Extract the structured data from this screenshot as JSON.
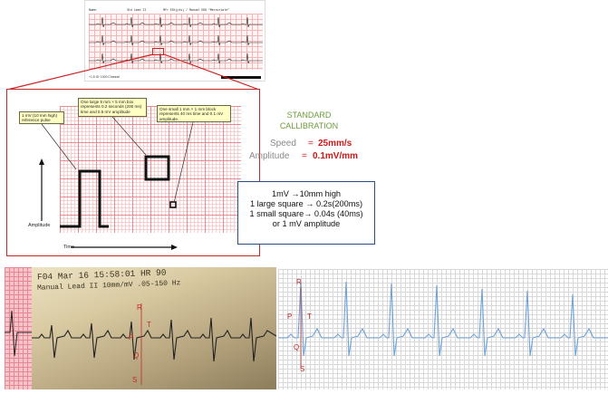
{
  "printout": {
    "header_lines": [
      "Name:                 Std Lead II          Mfr EDt(pts) / Manual EKG \"Mercuriale\"",
      "Patient ID:           HR 74               ECG 12-lead / sinus rhythm",
      "Sex:  M  Age:         PR 156              QRS 88",
      "Location:             QT/QTc 384/412      P-R-T axes",
      "Sex: M                25 mm/s  10 mm/mV   27 32 37"
    ],
    "footer": "+1.5  ID: 1000  Channel"
  },
  "zoom": {
    "note_ref": "1 mV (10 mm high) reference pulse",
    "note_large": "One large 5 mm × 5 mm box represents 0.2 seconds (200 ms) time and 0.5 mV amplitude",
    "note_small": "One small 1 mm × 1 mm block represents 40 ms time and 0.1 mV amplitude.",
    "amplitude_label": "Amplitude",
    "time_label": "Time"
  },
  "calibration": {
    "title_line1": "STANDARD",
    "title_line2": "CALLIBRATION",
    "speed_label": "Speed",
    "speed_eq": "=",
    "speed_value": "25mm/s",
    "amplitude_label": "Amplitude",
    "amplitude_eq": "=",
    "amplitude_value": "0.1mV/mm"
  },
  "conversions": [
    "1mV →10mm high",
    "1 large square → 0.2s(200ms)",
    "1 small square→ 0.04s (40ms)",
    "or 1 mV amplitude"
  ],
  "photo": {
    "line1": "F04 Mar 16  15:58:01  HR 90",
    "line2": "Manual   Lead II  10mm/mV   .05-150 Hz",
    "labels": {
      "R": "R",
      "T": "T",
      "P": "P",
      "Q": "Q",
      "S": "S"
    }
  },
  "blue_ecg": {
    "labels": {
      "R": "R",
      "P": "P",
      "T": "T",
      "Q": "Q",
      "S": "S"
    }
  },
  "colors": {
    "accent_red": "#d01818",
    "calib_green": "#6e9c3a",
    "box_border": "#2a4d80",
    "trace_blue": "#6fa3d8"
  }
}
